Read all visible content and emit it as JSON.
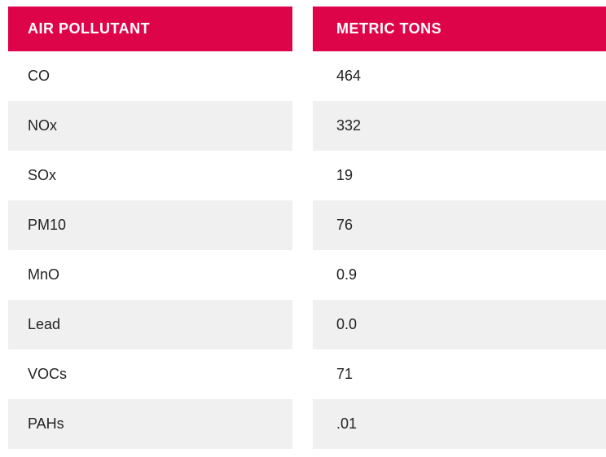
{
  "colors": {
    "header_bg": "#de0449",
    "header_text": "#ffffff",
    "row_bg": "#ffffff",
    "row_alt_bg": "#f0f0f0",
    "cell_text": "#232323"
  },
  "table": {
    "columns": [
      {
        "key": "pollutant",
        "label": "AIR POLLUTANT"
      },
      {
        "key": "tons",
        "label": "METRIC TONS"
      }
    ],
    "rows": [
      {
        "pollutant": "CO",
        "tons": "464"
      },
      {
        "pollutant": "NOx",
        "tons": "332"
      },
      {
        "pollutant": "SOx",
        "tons": "19"
      },
      {
        "pollutant": "PM10",
        "tons": "76"
      },
      {
        "pollutant": "MnO",
        "tons": "0.9"
      },
      {
        "pollutant": "Lead",
        "tons": "0.0"
      },
      {
        "pollutant": "VOCs",
        "tons": "71"
      },
      {
        "pollutant": "PAHs",
        "tons": ".01"
      }
    ]
  },
  "chart_data": {
    "type": "table",
    "title": "",
    "columns": [
      "AIR POLLUTANT",
      "METRIC TONS"
    ],
    "rows": [
      [
        "CO",
        "464"
      ],
      [
        "NOx",
        "332"
      ],
      [
        "SOx",
        "19"
      ],
      [
        "PM10",
        "76"
      ],
      [
        "MnO",
        "0.9"
      ],
      [
        "Lead",
        "0.0"
      ],
      [
        "VOCs",
        "71"
      ],
      [
        "PAHs",
        ".01"
      ]
    ]
  }
}
